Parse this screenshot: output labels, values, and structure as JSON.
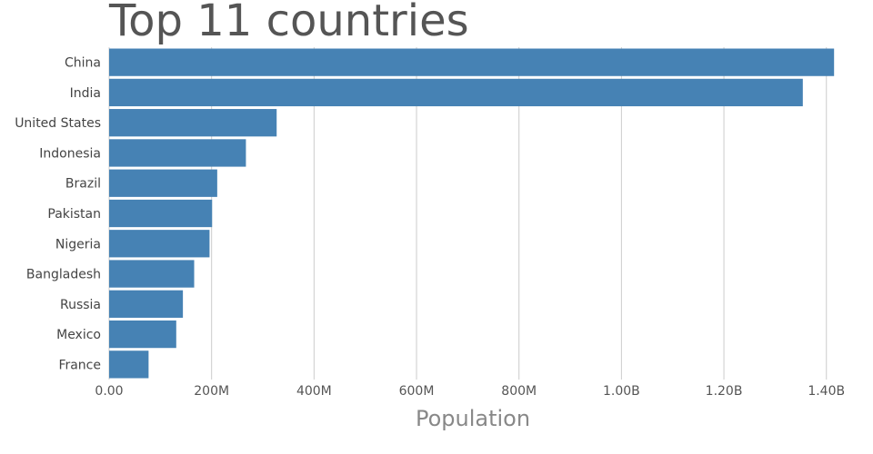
{
  "chart_data": {
    "type": "bar",
    "orientation": "horizontal",
    "title": "Top 11 countries",
    "xlabel": "Population",
    "ylabel": "",
    "categories": [
      "China",
      "India",
      "United States",
      "Indonesia",
      "Brazil",
      "Pakistan",
      "Nigeria",
      "Bangladesh",
      "Russia",
      "Mexico",
      "France"
    ],
    "values": [
      1415000000,
      1354000000,
      327000000,
      267000000,
      211000000,
      201000000,
      196000000,
      166000000,
      144000000,
      131000000,
      77000000
    ],
    "xlim": [
      0,
      1420000000
    ],
    "xticks": [
      0,
      200000000,
      400000000,
      600000000,
      800000000,
      1000000000,
      1200000000,
      1400000000
    ],
    "xtick_labels": [
      "0.00",
      "200M",
      "400M",
      "600M",
      "800M",
      "1.00B",
      "1.20B",
      "1.40B"
    ],
    "grid": "vertical",
    "legend": "none",
    "bar_color": "#4682b4",
    "grid_color": "#cccccc"
  }
}
